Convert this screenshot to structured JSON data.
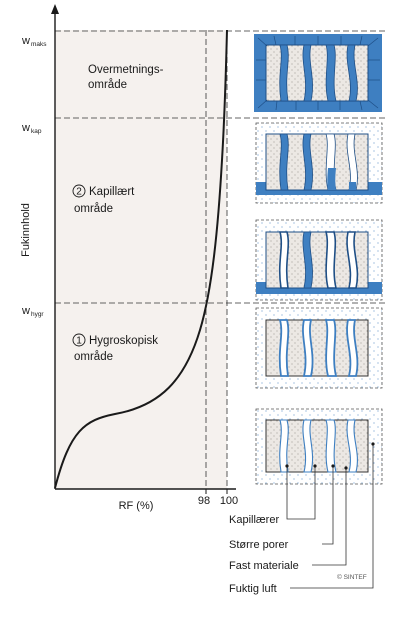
{
  "y_axis": {
    "label": "Fukinnhold",
    "levels": [
      {
        "base": "w",
        "sub": "maks"
      },
      {
        "base": "w",
        "sub": "kap"
      },
      {
        "base": "w",
        "sub": "hygr"
      }
    ]
  },
  "x_axis": {
    "label": "RF (%)",
    "ticks": [
      "98",
      "100"
    ]
  },
  "regions": {
    "overmetning": {
      "line1": "Overmetnings-",
      "line2": "område"
    },
    "kapillaert": {
      "number": "2",
      "line1": "Kapillært",
      "line2": "område"
    },
    "hygroskopisk": {
      "number": "1",
      "line1": "Hygroskopisk",
      "line2": "område"
    }
  },
  "legend": [
    {
      "label": "Kapillærer"
    },
    {
      "label": "Større porer"
    },
    {
      "label": "Fast materiale"
    },
    {
      "label": "Fuktig luft"
    }
  ],
  "copyright": "© SINTEF",
  "colors": {
    "water": "#3e7fc1",
    "water_dark": "#1f4f86",
    "shaded_area": "#f5f1ee",
    "material": "#ece8e4",
    "line": "#1a1a1a"
  }
}
